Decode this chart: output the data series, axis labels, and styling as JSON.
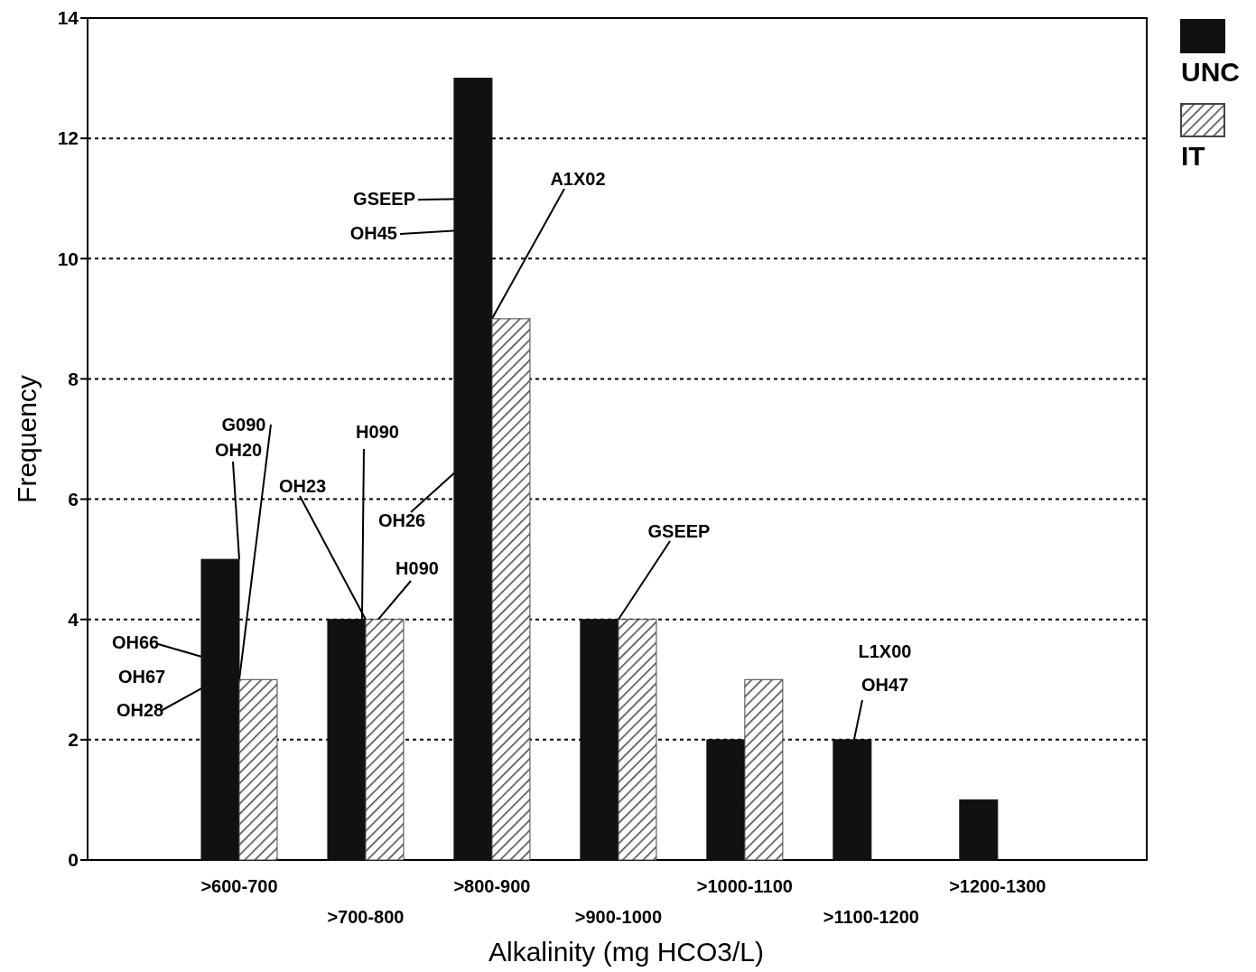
{
  "chart_data": {
    "type": "bar",
    "xlabel": "Alkalinity (mg HCO3/L)",
    "ylabel": "Frequency",
    "categories": [
      ">600-700",
      ">700-800",
      ">800-900",
      ">900-1000",
      ">1000-1100",
      ">1100-1200",
      ">1200-1300"
    ],
    "series": [
      {
        "name": "UNC",
        "color": "#111111",
        "values": [
          5,
          4,
          13,
          4,
          2,
          2,
          1
        ]
      },
      {
        "name": "IT",
        "color": "#444444",
        "values": [
          3,
          4,
          9,
          4,
          3,
          0,
          0
        ]
      }
    ],
    "ylim": [
      0,
      14
    ],
    "yticks": [
      0,
      2,
      4,
      6,
      8,
      10,
      12,
      14
    ],
    "grid": "y",
    "legend": "top right",
    "annotations": [
      {
        "text": "G090",
        "x": ">600-700",
        "y": 3
      },
      {
        "text": "OH20",
        "x": ">600-700",
        "y": 5
      },
      {
        "text": "OH23",
        "x": ">700-800",
        "y": 4
      },
      {
        "text": "H090",
        "x": ">700-800",
        "y": 4
      },
      {
        "text": "OH26",
        "x": ">800-900",
        "y": 7
      },
      {
        "text": "H090",
        "x": ">700-800",
        "y": 4
      },
      {
        "text": "GSEEP",
        "x": ">800-900",
        "y": 11
      },
      {
        "text": "OH45",
        "x": ">800-900",
        "y": 10.5
      },
      {
        "text": "A1X02",
        "x": ">800-900",
        "y": 9
      },
      {
        "text": "GSEEP",
        "x": ">900-1000",
        "y": 4
      },
      "L1X00",
      {
        "text": "OH47",
        "x": ">1100-1200",
        "y": 2
      },
      {
        "text": "OH66",
        "x": ">600-700",
        "y": 3.2
      },
      "OH67",
      {
        "text": "OH28",
        "x": ">600-700",
        "y": 3.2
      }
    ]
  }
}
